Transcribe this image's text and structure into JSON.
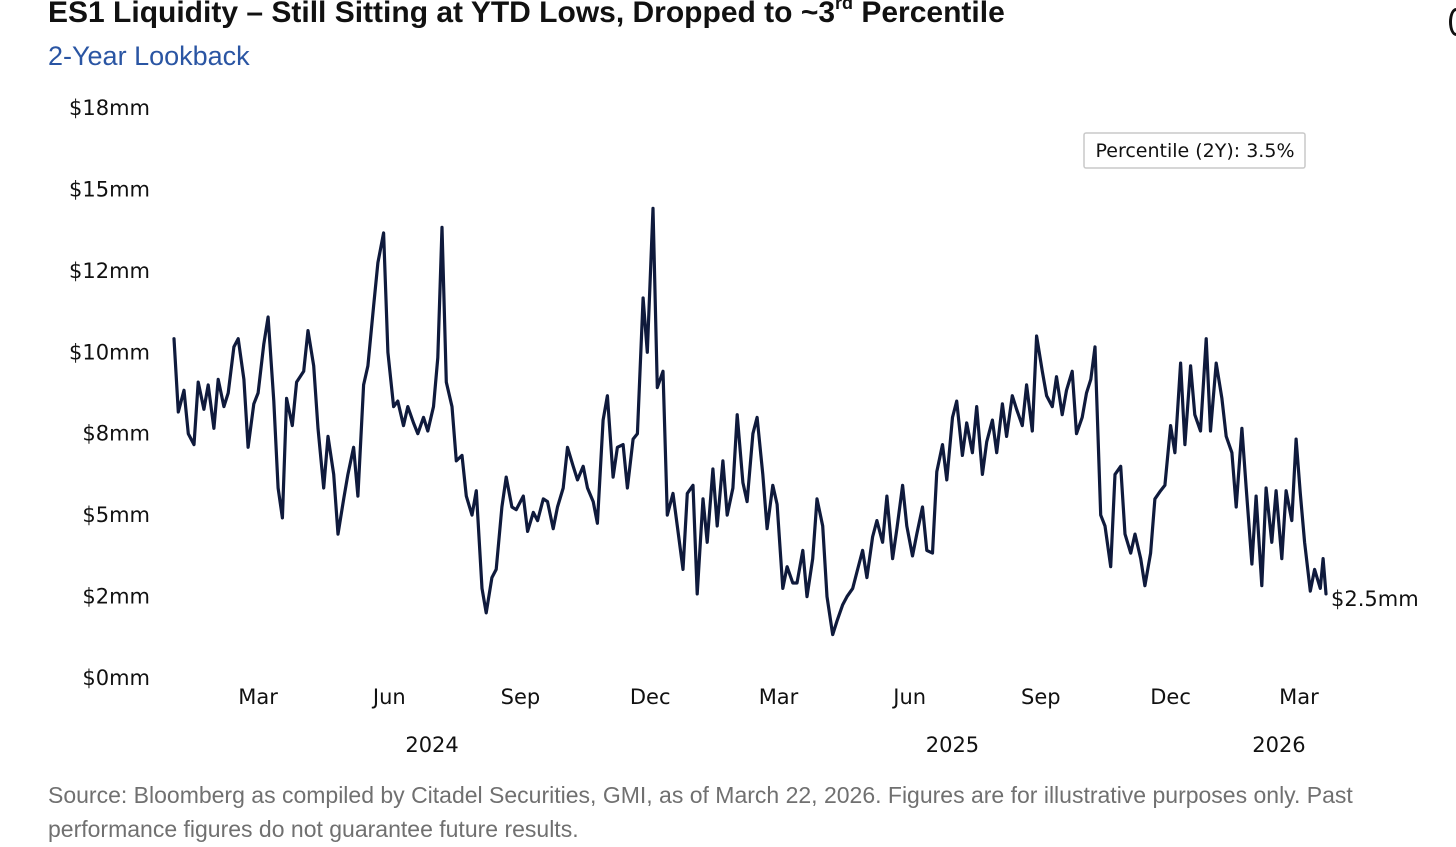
{
  "header": {
    "title_main": "ES1 Liquidity – Still Sitting at YTD Lows, Dropped to ~3",
    "title_sup": "rd",
    "title_end": " Percentile",
    "subtitle": "2-Year Lookback"
  },
  "annotation": {
    "text": "Percentile (2Y): 3.5%"
  },
  "footer": {
    "source": "Source: Bloomberg as compiled by Citadel Securities, GMI, as of March 22, 2026. Figures are for illustrative purposes only. Past performance figures do not guarantee future results."
  },
  "colors": {
    "line": "#0f1a3c",
    "title": "#111111",
    "subtitle": "#2a55a3",
    "source": "#707070"
  },
  "chart_data": {
    "type": "line",
    "title": "ES1 Liquidity – Still Sitting at YTD Lows, Dropped to ~3rd Percentile",
    "subtitle": "2-Year Lookback",
    "ylabel": "",
    "xlabel": "",
    "ylim": [
      0,
      18
    ],
    "y_ticks": [
      {
        "value": 0,
        "label": "$0mm"
      },
      {
        "value": 3,
        "label": "$2mm"
      },
      {
        "value": 6,
        "label": "$5mm"
      },
      {
        "value": 9,
        "label": "$8mm"
      },
      {
        "value": 12,
        "label": "$10mm"
      },
      {
        "value": 15,
        "label": "$12mm"
      },
      {
        "value": 18,
        "label": "$15mm"
      },
      {
        "value": 21,
        "label": "$18mm"
      }
    ],
    "y_ticks_note": "tick labels printed in original: $0mm, $2mm, $5mm, $8mm, $10mm, $12mm, $15mm, $18mm at equal spacing",
    "x_range": [
      "2024-01-02",
      "2026-03-20"
    ],
    "x_ticks": [
      {
        "date": "2024-03-01",
        "label": "Mar"
      },
      {
        "date": "2024-06-01",
        "label": "Jun"
      },
      {
        "date": "2024-09-01",
        "label": "Sep"
      },
      {
        "date": "2024-12-01",
        "label": "Dec"
      },
      {
        "date": "2025-03-01",
        "label": "Mar"
      },
      {
        "date": "2025-06-01",
        "label": "Jun"
      },
      {
        "date": "2025-09-01",
        "label": "Sep"
      },
      {
        "date": "2025-12-01",
        "label": "Dec"
      },
      {
        "date": "2026-03-01",
        "label": "Mar"
      }
    ],
    "year_labels": [
      {
        "date": "2024-07-01",
        "label": "2024"
      },
      {
        "date": "2025-07-01",
        "label": "2025"
      },
      {
        "date": "2026-02-15",
        "label": "2026"
      }
    ],
    "last_value_label": "$2.5mm",
    "series": [
      {
        "values_unit": "$mm",
        "points": [
          [
            "2024-01-02",
            12.5
          ],
          [
            "2024-01-05",
            9.8
          ],
          [
            "2024-01-09",
            10.6
          ],
          [
            "2024-01-12",
            9.0
          ],
          [
            "2024-01-16",
            8.6
          ],
          [
            "2024-01-19",
            10.9
          ],
          [
            "2024-01-23",
            9.9
          ],
          [
            "2024-01-26",
            10.8
          ],
          [
            "2024-01-30",
            9.2
          ],
          [
            "2024-02-02",
            11.0
          ],
          [
            "2024-02-06",
            10.0
          ],
          [
            "2024-02-09",
            10.5
          ],
          [
            "2024-02-13",
            12.2
          ],
          [
            "2024-02-16",
            12.5
          ],
          [
            "2024-02-20",
            11.0
          ],
          [
            "2024-02-23",
            8.5
          ],
          [
            "2024-02-27",
            10.1
          ],
          [
            "2024-03-01",
            10.5
          ],
          [
            "2024-03-05",
            12.3
          ],
          [
            "2024-03-08",
            13.3
          ],
          [
            "2024-03-12",
            10.2
          ],
          [
            "2024-03-15",
            7.0
          ],
          [
            "2024-03-18",
            5.9
          ],
          [
            "2024-03-21",
            10.3
          ],
          [
            "2024-03-25",
            9.3
          ],
          [
            "2024-03-28",
            10.9
          ],
          [
            "2024-04-02",
            11.3
          ],
          [
            "2024-04-05",
            12.8
          ],
          [
            "2024-04-09",
            11.5
          ],
          [
            "2024-04-12",
            9.2
          ],
          [
            "2024-04-16",
            7.0
          ],
          [
            "2024-04-19",
            8.9
          ],
          [
            "2024-04-23",
            7.5
          ],
          [
            "2024-04-26",
            5.3
          ],
          [
            "2024-04-30",
            6.6
          ],
          [
            "2024-05-03",
            7.5
          ],
          [
            "2024-05-07",
            8.5
          ],
          [
            "2024-05-10",
            6.7
          ],
          [
            "2024-05-14",
            10.8
          ],
          [
            "2024-05-17",
            11.5
          ],
          [
            "2024-05-21",
            13.7
          ],
          [
            "2024-05-24",
            15.3
          ],
          [
            "2024-05-28",
            16.4
          ],
          [
            "2024-05-31",
            12.0
          ],
          [
            "2024-06-04",
            10.0
          ],
          [
            "2024-06-07",
            10.2
          ],
          [
            "2024-06-11",
            9.3
          ],
          [
            "2024-06-14",
            10.0
          ],
          [
            "2024-06-18",
            9.4
          ],
          [
            "2024-06-21",
            9.0
          ],
          [
            "2024-06-25",
            9.6
          ],
          [
            "2024-06-28",
            9.1
          ],
          [
            "2024-07-02",
            10.0
          ],
          [
            "2024-07-05",
            11.8
          ],
          [
            "2024-07-08",
            16.6
          ],
          [
            "2024-07-11",
            10.9
          ],
          [
            "2024-07-15",
            10.0
          ],
          [
            "2024-07-18",
            8.0
          ],
          [
            "2024-07-22",
            8.2
          ],
          [
            "2024-07-25",
            6.7
          ],
          [
            "2024-07-29",
            6.0
          ],
          [
            "2024-08-01",
            6.9
          ],
          [
            "2024-08-05",
            3.3
          ],
          [
            "2024-08-08",
            2.4
          ],
          [
            "2024-08-12",
            3.7
          ],
          [
            "2024-08-15",
            4.0
          ],
          [
            "2024-08-19",
            6.3
          ],
          [
            "2024-08-22",
            7.4
          ],
          [
            "2024-08-26",
            6.3
          ],
          [
            "2024-08-29",
            6.2
          ],
          [
            "2024-09-03",
            6.7
          ],
          [
            "2024-09-06",
            5.4
          ],
          [
            "2024-09-10",
            6.1
          ],
          [
            "2024-09-13",
            5.8
          ],
          [
            "2024-09-17",
            6.6
          ],
          [
            "2024-09-20",
            6.5
          ],
          [
            "2024-09-24",
            5.5
          ],
          [
            "2024-09-27",
            6.3
          ],
          [
            "2024-10-01",
            7.0
          ],
          [
            "2024-10-04",
            8.5
          ],
          [
            "2024-10-08",
            7.8
          ],
          [
            "2024-10-11",
            7.3
          ],
          [
            "2024-10-15",
            7.8
          ],
          [
            "2024-10-18",
            7.0
          ],
          [
            "2024-10-22",
            6.5
          ],
          [
            "2024-10-25",
            5.7
          ],
          [
            "2024-10-29",
            9.5
          ],
          [
            "2024-11-01",
            10.4
          ],
          [
            "2024-11-05",
            7.4
          ],
          [
            "2024-11-08",
            8.5
          ],
          [
            "2024-11-12",
            8.6
          ],
          [
            "2024-11-15",
            7.0
          ],
          [
            "2024-11-19",
            8.8
          ],
          [
            "2024-11-22",
            9.0
          ],
          [
            "2024-11-26",
            14.0
          ],
          [
            "2024-11-29",
            12.0
          ],
          [
            "2024-12-03",
            17.3
          ],
          [
            "2024-12-06",
            10.7
          ],
          [
            "2024-12-10",
            11.3
          ],
          [
            "2024-12-13",
            6.0
          ],
          [
            "2024-12-17",
            6.8
          ],
          [
            "2024-12-20",
            5.6
          ],
          [
            "2024-12-24",
            4.0
          ],
          [
            "2024-12-27",
            6.8
          ],
          [
            "2024-12-31",
            7.1
          ],
          [
            "2025-01-03",
            3.1
          ],
          [
            "2025-01-07",
            6.6
          ],
          [
            "2025-01-10",
            5.0
          ],
          [
            "2025-01-14",
            7.7
          ],
          [
            "2025-01-17",
            5.6
          ],
          [
            "2025-01-21",
            8.0
          ],
          [
            "2025-01-24",
            6.0
          ],
          [
            "2025-01-28",
            7.0
          ],
          [
            "2025-01-31",
            9.7
          ],
          [
            "2025-02-04",
            7.2
          ],
          [
            "2025-02-07",
            6.5
          ],
          [
            "2025-02-11",
            9.0
          ],
          [
            "2025-02-14",
            9.6
          ],
          [
            "2025-02-18",
            7.5
          ],
          [
            "2025-02-21",
            5.5
          ],
          [
            "2025-02-25",
            7.1
          ],
          [
            "2025-02-28",
            6.4
          ],
          [
            "2025-03-04",
            3.3
          ],
          [
            "2025-03-07",
            4.1
          ],
          [
            "2025-03-11",
            3.5
          ],
          [
            "2025-03-14",
            3.5
          ],
          [
            "2025-03-18",
            4.7
          ],
          [
            "2025-03-21",
            3.0
          ],
          [
            "2025-03-25",
            4.4
          ],
          [
            "2025-03-28",
            6.6
          ],
          [
            "2025-04-01",
            5.6
          ],
          [
            "2025-04-04",
            3.0
          ],
          [
            "2025-04-08",
            1.6
          ],
          [
            "2025-04-11",
            2.1
          ],
          [
            "2025-04-15",
            2.7
          ],
          [
            "2025-04-18",
            3.0
          ],
          [
            "2025-04-22",
            3.3
          ],
          [
            "2025-04-25",
            3.9
          ],
          [
            "2025-04-29",
            4.7
          ],
          [
            "2025-05-02",
            3.7
          ],
          [
            "2025-05-06",
            5.2
          ],
          [
            "2025-05-09",
            5.8
          ],
          [
            "2025-05-13",
            5.0
          ],
          [
            "2025-05-16",
            6.7
          ],
          [
            "2025-05-20",
            4.4
          ],
          [
            "2025-05-23",
            5.5
          ],
          [
            "2025-05-27",
            7.1
          ],
          [
            "2025-05-30",
            5.6
          ],
          [
            "2025-06-03",
            4.5
          ],
          [
            "2025-06-06",
            5.3
          ],
          [
            "2025-06-10",
            6.3
          ],
          [
            "2025-06-13",
            4.7
          ],
          [
            "2025-06-17",
            4.6
          ],
          [
            "2025-06-20",
            7.6
          ],
          [
            "2025-06-24",
            8.6
          ],
          [
            "2025-06-27",
            7.3
          ],
          [
            "2025-07-01",
            9.6
          ],
          [
            "2025-07-04",
            10.2
          ],
          [
            "2025-07-08",
            8.2
          ],
          [
            "2025-07-11",
            9.4
          ],
          [
            "2025-07-15",
            8.3
          ],
          [
            "2025-07-18",
            10.0
          ],
          [
            "2025-07-22",
            7.5
          ],
          [
            "2025-07-25",
            8.7
          ],
          [
            "2025-07-29",
            9.5
          ],
          [
            "2025-08-01",
            8.3
          ],
          [
            "2025-08-05",
            10.1
          ],
          [
            "2025-08-08",
            8.9
          ],
          [
            "2025-08-12",
            10.4
          ],
          [
            "2025-08-15",
            9.9
          ],
          [
            "2025-08-19",
            9.3
          ],
          [
            "2025-08-22",
            10.8
          ],
          [
            "2025-08-26",
            9.1
          ],
          [
            "2025-08-29",
            12.6
          ],
          [
            "2025-09-02",
            11.3
          ],
          [
            "2025-09-05",
            10.4
          ],
          [
            "2025-09-09",
            10.0
          ],
          [
            "2025-09-12",
            11.1
          ],
          [
            "2025-09-16",
            9.7
          ],
          [
            "2025-09-19",
            10.6
          ],
          [
            "2025-09-23",
            11.3
          ],
          [
            "2025-09-26",
            9.0
          ],
          [
            "2025-09-30",
            9.6
          ],
          [
            "2025-10-03",
            10.5
          ],
          [
            "2025-10-06",
            11.0
          ],
          [
            "2025-10-09",
            12.2
          ],
          [
            "2025-10-13",
            6.0
          ],
          [
            "2025-10-16",
            5.6
          ],
          [
            "2025-10-20",
            4.1
          ],
          [
            "2025-10-23",
            7.5
          ],
          [
            "2025-10-27",
            7.8
          ],
          [
            "2025-10-30",
            5.3
          ],
          [
            "2025-11-03",
            4.6
          ],
          [
            "2025-11-06",
            5.3
          ],
          [
            "2025-11-10",
            4.4
          ],
          [
            "2025-11-13",
            3.4
          ],
          [
            "2025-11-17",
            4.6
          ],
          [
            "2025-11-20",
            6.6
          ],
          [
            "2025-11-24",
            6.9
          ],
          [
            "2025-11-27",
            7.1
          ],
          [
            "2025-12-01",
            9.3
          ],
          [
            "2025-12-04",
            8.3
          ],
          [
            "2025-12-08",
            11.6
          ],
          [
            "2025-12-11",
            8.6
          ],
          [
            "2025-12-15",
            11.5
          ],
          [
            "2025-12-18",
            9.7
          ],
          [
            "2025-12-22",
            9.1
          ],
          [
            "2025-12-26",
            12.5
          ],
          [
            "2025-12-29",
            9.1
          ],
          [
            "2026-01-02",
            11.6
          ],
          [
            "2026-01-06",
            10.3
          ],
          [
            "2026-01-09",
            8.9
          ],
          [
            "2026-01-13",
            8.3
          ],
          [
            "2026-01-16",
            6.3
          ],
          [
            "2026-01-20",
            9.2
          ],
          [
            "2026-01-23",
            7.0
          ],
          [
            "2026-01-27",
            4.2
          ],
          [
            "2026-01-30",
            6.7
          ],
          [
            "2026-02-03",
            3.4
          ],
          [
            "2026-02-06",
            7.0
          ],
          [
            "2026-02-10",
            5.0
          ],
          [
            "2026-02-13",
            6.9
          ],
          [
            "2026-02-17",
            4.4
          ],
          [
            "2026-02-20",
            6.9
          ],
          [
            "2026-02-24",
            5.8
          ],
          [
            "2026-02-27",
            8.8
          ],
          [
            "2026-03-02",
            6.8
          ],
          [
            "2026-03-05",
            5.0
          ],
          [
            "2026-03-09",
            3.2
          ],
          [
            "2026-03-12",
            4.0
          ],
          [
            "2026-03-16",
            3.3
          ],
          [
            "2026-03-18",
            4.4
          ],
          [
            "2026-03-20",
            3.1
          ]
        ]
      }
    ]
  }
}
